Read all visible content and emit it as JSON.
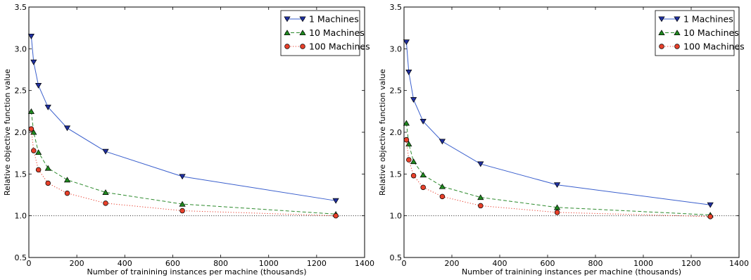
{
  "chart_data": [
    {
      "type": "line",
      "xlabel": "Number of trainining instances per machine (thousands)",
      "ylabel": "Relative objective function value",
      "xlim": [
        0,
        1400
      ],
      "ylim": [
        0.5,
        3.5
      ],
      "xticks": [
        0,
        200,
        400,
        600,
        800,
        1000,
        1200,
        1400
      ],
      "yticks": [
        0.5,
        1.0,
        1.5,
        2.0,
        2.5,
        3.0,
        3.5
      ],
      "grid": false,
      "legend_position": "top-right",
      "reference_line": 1.0,
      "x": [
        10,
        20,
        40,
        80,
        160,
        320,
        640,
        1280
      ],
      "series": [
        {
          "name": "1 Machines",
          "color": "#3a5fcd",
          "marker_color": "#1f2f9f",
          "marker": "triangle-down",
          "linestyle": "solid",
          "values": [
            3.15,
            2.84,
            2.56,
            2.3,
            2.05,
            1.77,
            1.47,
            1.18
          ]
        },
        {
          "name": "10 Machines",
          "color": "#2e8b2e",
          "marker_color": "#1f8a1f",
          "marker": "triangle-up",
          "linestyle": "dashed",
          "values": [
            2.25,
            2.0,
            1.76,
            1.57,
            1.43,
            1.28,
            1.14,
            1.02
          ]
        },
        {
          "name": "100 Machines",
          "color": "#e83a2a",
          "marker_color": "#e8402a",
          "marker": "circle",
          "linestyle": "dotted",
          "values": [
            2.04,
            1.78,
            1.55,
            1.39,
            1.27,
            1.15,
            1.06,
            1.0
          ]
        }
      ]
    },
    {
      "type": "line",
      "xlabel": "Number of trainining instances per machine (thousands)",
      "ylabel": "Relative objective function value",
      "xlim": [
        0,
        1400
      ],
      "ylim": [
        0.5,
        3.5
      ],
      "xticks": [
        0,
        200,
        400,
        600,
        800,
        1000,
        1200,
        1400
      ],
      "yticks": [
        0.5,
        1.0,
        1.5,
        2.0,
        2.5,
        3.0,
        3.5
      ],
      "grid": false,
      "legend_position": "top-right",
      "reference_line": 1.0,
      "x": [
        10,
        20,
        40,
        80,
        160,
        320,
        640,
        1280
      ],
      "series": [
        {
          "name": "1 Machines",
          "color": "#3a5fcd",
          "marker_color": "#1f2f9f",
          "marker": "triangle-down",
          "linestyle": "solid",
          "values": [
            3.08,
            2.72,
            2.39,
            2.13,
            1.89,
            1.62,
            1.37,
            1.13
          ]
        },
        {
          "name": "10 Machines",
          "color": "#2e8b2e",
          "marker_color": "#1f8a1f",
          "marker": "triangle-up",
          "linestyle": "dashed",
          "values": [
            2.11,
            1.86,
            1.65,
            1.49,
            1.35,
            1.22,
            1.1,
            1.01
          ]
        },
        {
          "name": "100 Machines",
          "color": "#e83a2a",
          "marker_color": "#e8402a",
          "marker": "circle",
          "linestyle": "dotted",
          "values": [
            1.91,
            1.67,
            1.48,
            1.34,
            1.23,
            1.12,
            1.04,
            0.99
          ]
        }
      ]
    }
  ]
}
